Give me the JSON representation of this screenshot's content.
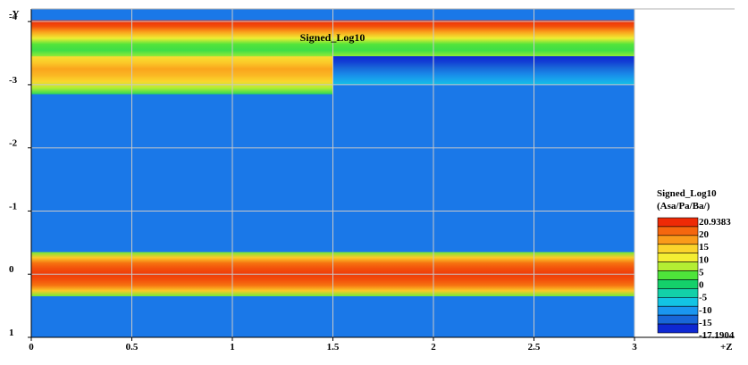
{
  "chart_data": {
    "type": "heatmap",
    "title": "Signed_Log10",
    "y_axis_label": "-Y",
    "x_axis_label": "+Z",
    "x_ticks": [
      "0",
      "0.5",
      "1",
      "1.5",
      "2",
      "2.5",
      "3"
    ],
    "y_ticks": [
      "-4",
      "-3",
      "-2",
      "-1",
      "0",
      "1"
    ],
    "xlim": [
      0,
      3
    ],
    "ylim": [
      1,
      -4.2
    ],
    "y_axis_inverted": true,
    "grid": true,
    "colorbar": {
      "title": "Signed_Log10",
      "units": "(Asa/Pa/Ba/)",
      "labels": [
        "20.9383",
        "20",
        "15",
        "10",
        "5",
        "0",
        "-5",
        "-10",
        "-15",
        "-17.1904"
      ],
      "max": 20.9383,
      "min": -17.1904,
      "colors": [
        "#ee2a06",
        "#f5660e",
        "#fa9a1a",
        "#fbd42c",
        "#f4ee33",
        "#b4ee33",
        "#4ee43a",
        "#14d06a",
        "#12d0a8",
        "#12c4e4",
        "#1a96f0",
        "#1866d8",
        "#0e28d2"
      ],
      "placement": "right"
    },
    "background_value": -7.5,
    "background_color": "#1a78e8",
    "regions": [
      {
        "z_range": [
          0,
          3
        ],
        "y_range": [
          -4.02,
          -3.45
        ],
        "profile": [
          20.9,
          19,
          14,
          8,
          2,
          1,
          4
        ]
      },
      {
        "z_range": [
          0,
          1.5
        ],
        "y_range": [
          -3.45,
          -2.85
        ],
        "profile": [
          10,
          12,
          14,
          13,
          11,
          5,
          0
        ]
      },
      {
        "z_range": [
          1.5,
          3
        ],
        "y_range": [
          -3.45,
          -3.0
        ],
        "profile": [
          -17.19,
          -16,
          -14,
          -12,
          -10,
          -8
        ]
      },
      {
        "z_range": [
          0,
          3
        ],
        "y_range": [
          -0.35,
          0.35
        ],
        "profile": [
          3,
          12,
          17,
          19,
          20,
          19,
          17,
          12,
          3
        ]
      }
    ]
  }
}
